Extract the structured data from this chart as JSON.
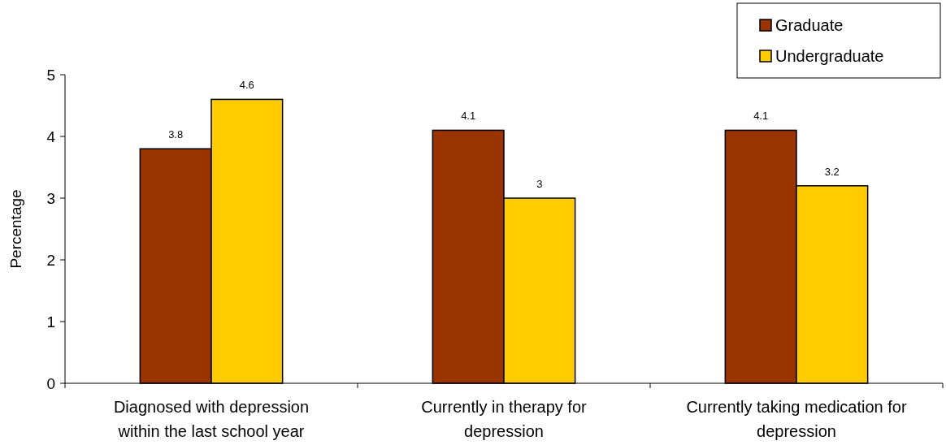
{
  "chart_data": {
    "type": "bar",
    "ylabel": "Percentage",
    "categories": [
      "Diagnosed with depression within the last school year",
      "Currently in therapy for depression",
      "Currently taking medication for depression"
    ],
    "series": [
      {
        "name": "Graduate",
        "color": "#993300",
        "values": [
          3.8,
          4.1,
          4.1
        ]
      },
      {
        "name": "Undergraduate",
        "color": "#ffcc00",
        "values": [
          4.6,
          3,
          3.2
        ]
      }
    ],
    "ylim": [
      0,
      5
    ],
    "yticks": [
      0,
      1,
      2,
      3,
      4,
      5
    ],
    "data_labels": true,
    "legend": "top right",
    "grid": false
  }
}
